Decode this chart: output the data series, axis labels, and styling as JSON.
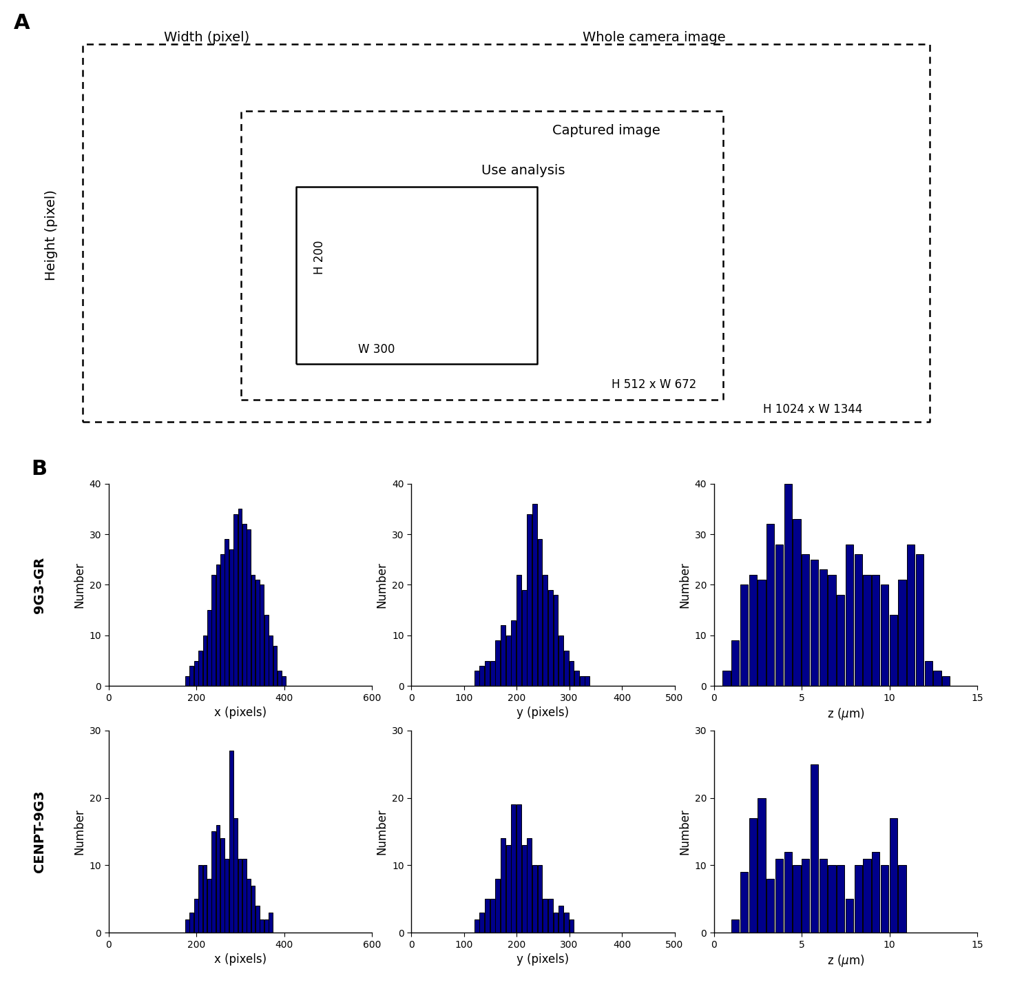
{
  "bar_color": "#00008B",
  "bar_edge_color": "#000010",
  "9G3GR_x_bins": [
    155,
    165,
    175,
    185,
    195,
    205,
    215,
    225,
    235,
    245,
    255,
    265,
    275,
    285,
    295,
    305,
    315,
    325,
    335,
    345,
    355,
    365,
    375,
    385,
    395,
    405,
    415,
    425,
    435,
    445
  ],
  "9G3GR_x_vals": [
    0,
    0,
    2,
    4,
    5,
    7,
    10,
    15,
    22,
    24,
    26,
    29,
    27,
    34,
    35,
    32,
    31,
    22,
    21,
    20,
    14,
    10,
    8,
    3,
    2,
    0,
    0,
    0,
    0,
    0
  ],
  "9G3GR_y_bins": [
    100,
    110,
    120,
    130,
    140,
    150,
    160,
    170,
    180,
    190,
    200,
    210,
    220,
    230,
    240,
    250,
    260,
    270,
    280,
    290,
    300,
    310,
    320,
    330,
    340,
    350,
    360,
    370,
    380,
    390
  ],
  "9G3GR_y_vals": [
    0,
    0,
    3,
    4,
    5,
    5,
    9,
    12,
    10,
    13,
    22,
    19,
    34,
    36,
    29,
    22,
    19,
    18,
    10,
    7,
    5,
    3,
    2,
    2,
    0,
    0,
    0,
    0,
    0,
    0
  ],
  "9G3GR_z_bins": [
    0.0,
    0.5,
    1.0,
    1.5,
    2.0,
    2.5,
    3.0,
    3.5,
    4.0,
    4.5,
    5.0,
    5.5,
    6.0,
    6.5,
    7.0,
    7.5,
    8.0,
    8.5,
    9.0,
    9.5,
    10.0,
    10.5,
    11.0,
    11.5,
    12.0,
    12.5,
    13.0,
    13.5,
    14.0,
    14.5
  ],
  "9G3GR_z_vals": [
    0,
    3,
    9,
    20,
    22,
    21,
    32,
    28,
    40,
    33,
    26,
    25,
    23,
    22,
    18,
    28,
    26,
    22,
    22,
    20,
    14,
    21,
    28,
    26,
    5,
    3,
    2,
    0,
    0,
    0
  ],
  "CENPT_x_bins": [
    155,
    165,
    175,
    185,
    195,
    205,
    215,
    225,
    235,
    245,
    255,
    265,
    275,
    285,
    295,
    305,
    315,
    325,
    335,
    345,
    355,
    365,
    375,
    385,
    395,
    405,
    415
  ],
  "CENPT_x_vals": [
    0,
    0,
    2,
    3,
    5,
    10,
    10,
    8,
    15,
    16,
    14,
    11,
    27,
    17,
    11,
    11,
    8,
    7,
    4,
    2,
    2,
    3,
    0,
    0,
    0,
    0,
    0
  ],
  "CENPT_y_bins": [
    100,
    110,
    120,
    130,
    140,
    150,
    160,
    170,
    180,
    190,
    200,
    210,
    220,
    230,
    240,
    250,
    260,
    270,
    280,
    290,
    300,
    310,
    320,
    330,
    340
  ],
  "CENPT_y_vals": [
    0,
    0,
    2,
    3,
    5,
    5,
    8,
    14,
    13,
    19,
    19,
    13,
    14,
    10,
    10,
    5,
    5,
    3,
    4,
    3,
    2,
    0,
    0,
    0,
    0
  ],
  "CENPT_z_bins": [
    0.0,
    0.5,
    1.0,
    1.5,
    2.0,
    2.5,
    3.0,
    3.5,
    4.0,
    4.5,
    5.0,
    5.5,
    6.0,
    6.5,
    7.0,
    7.5,
    8.0,
    8.5,
    9.0,
    9.5,
    10.0,
    10.5,
    11.0,
    11.5,
    12.0
  ],
  "CENPT_z_vals": [
    0,
    0,
    2,
    9,
    17,
    20,
    8,
    11,
    12,
    10,
    11,
    25,
    11,
    10,
    10,
    5,
    10,
    11,
    12,
    10,
    17,
    10,
    0,
    0,
    0
  ],
  "panel_A_label": "A",
  "panel_B_label": "B",
  "row1_label": "9G3-GR",
  "row2_label": "CENPT-9G3",
  "whole_camera": "Whole camera image",
  "captured": "Captured image",
  "use_analysis": "Use analysis",
  "dim_inner_h": "H 200",
  "dim_inner_w": "W 300",
  "dim_mid": "H 512 x W 672",
  "dim_outer": "H 1024 x W 1344",
  "width_label": "Width (pixel)",
  "height_label": "Height (pixel)"
}
